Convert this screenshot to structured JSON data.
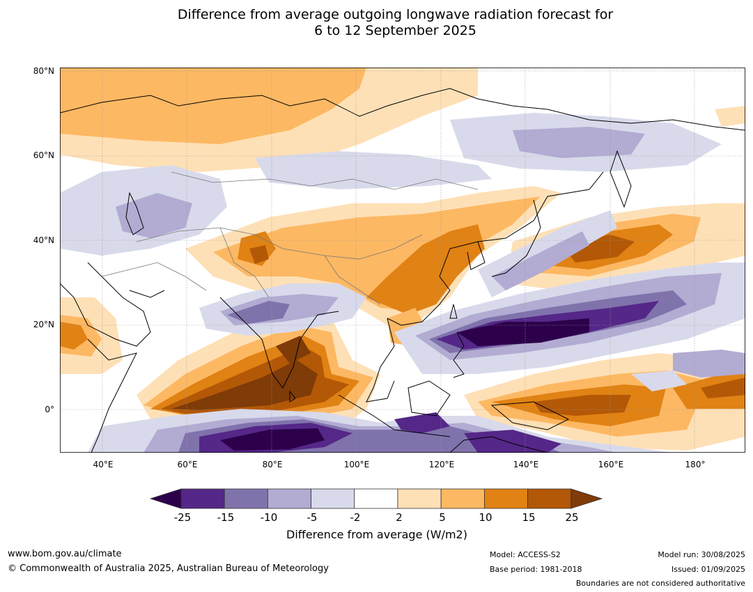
{
  "title": "Difference from average outgoing longwave radiation forecast for\n6 to 12 September 2025",
  "map": {
    "lat_labels": [
      "80°N",
      "60°N",
      "40°N",
      "20°N",
      "0°"
    ],
    "lon_labels": [
      "40°E",
      "60°E",
      "80°E",
      "100°E",
      "120°E",
      "140°E",
      "160°E",
      "180°"
    ],
    "lon_range": [
      30,
      192
    ],
    "lat_range": [
      -10,
      81
    ]
  },
  "colorbar": {
    "ticks": [
      "-25",
      "-15",
      "-10",
      "-5",
      "-2",
      "2",
      "5",
      "10",
      "15",
      "25"
    ],
    "colors": {
      "under": "#2d004b",
      "bins": [
        "#542788",
        "#8073ac",
        "#b2abd2",
        "#d8daeb",
        "#ffffff",
        "#fee0b6",
        "#fdb863",
        "#e08214",
        "#b35806"
      ],
      "over": "#7f3b08"
    },
    "label": "Difference from average (W/m2)"
  },
  "footer": {
    "website": "www.bom.gov.au/climate",
    "copyright": "© Commonwealth of Australia 2025, Australian Bureau of Meteorology",
    "model": "Model: ACCESS-S2",
    "base_period": "Base period: 1981-2018",
    "model_run": "Model run: 30/08/2025",
    "issued": "Issued: 01/09/2025",
    "disclaimer": "Boundaries are not considered authoritative"
  }
}
